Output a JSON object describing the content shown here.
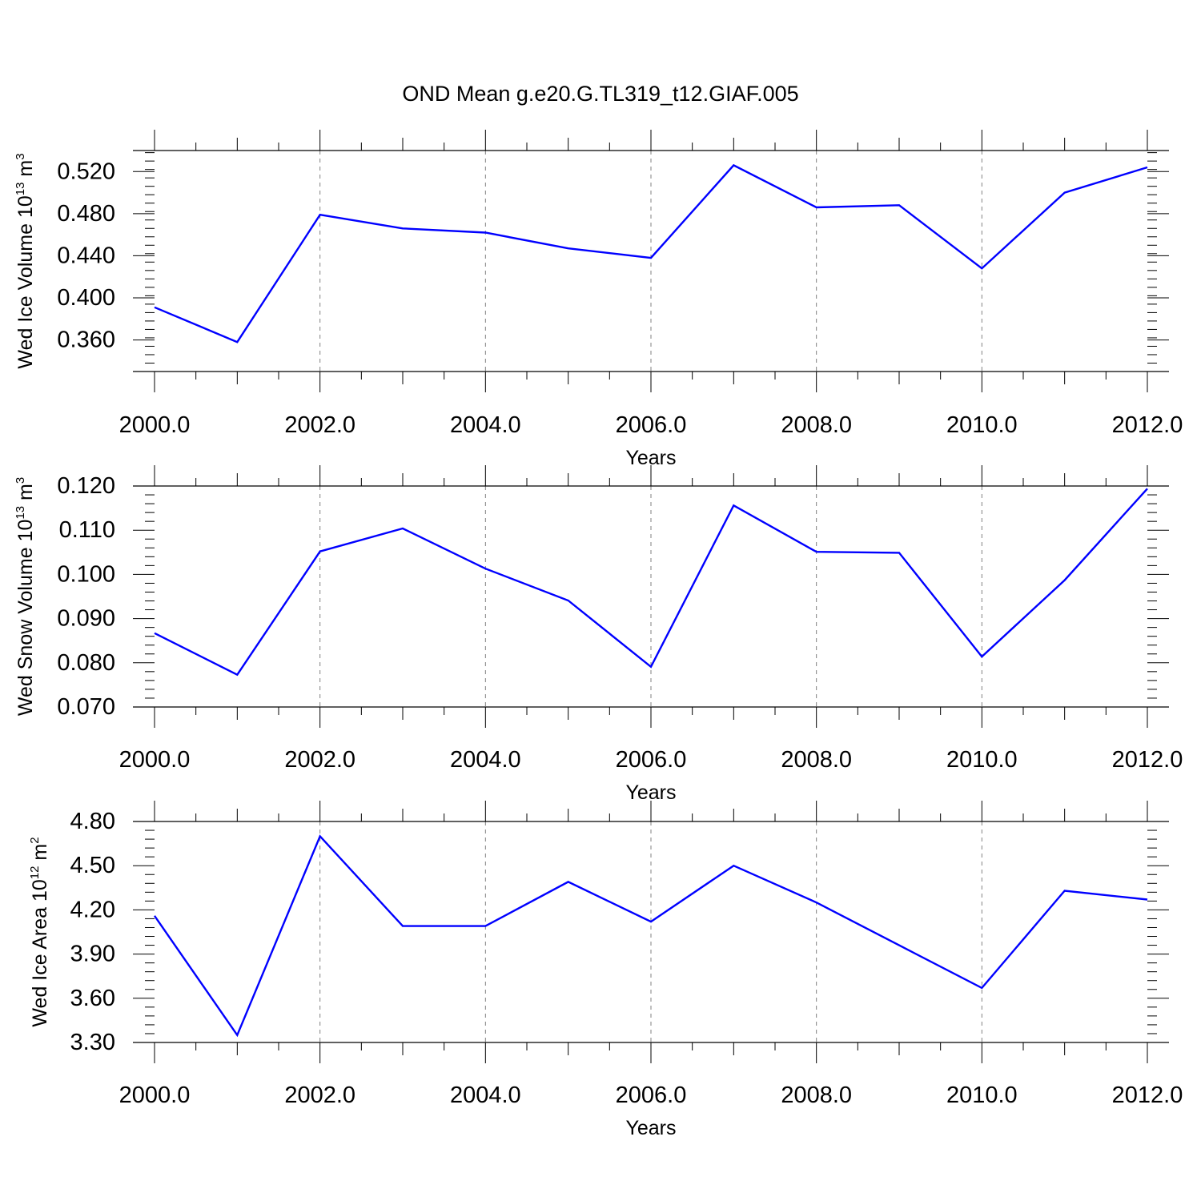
{
  "title": "OND Mean g.e20.G.TL319_t12.GIAF.005",
  "colors": {
    "line": "#0000ff",
    "axis": "#000000",
    "grid": "#808080",
    "background": "#ffffff"
  },
  "chart_data": [
    {
      "type": "line",
      "ylabel": {
        "pre": "Wed Ice Volume 10",
        "sup1": "13",
        "mid": " m",
        "sup2": "3"
      },
      "xlabel": "Years",
      "xlim": [
        2000,
        2012
      ],
      "ylim": [
        0.33,
        0.54
      ],
      "xticks": [
        2000,
        2002,
        2004,
        2006,
        2008,
        2010,
        2012
      ],
      "xtick_labels": [
        "2000.0",
        "2002.0",
        "2004.0",
        "2006.0",
        "2008.0",
        "2010.0",
        "2012.0"
      ],
      "yticks": [
        0.36,
        0.4,
        0.44,
        0.48,
        0.52
      ],
      "ytick_labels": [
        "0.360",
        "0.400",
        "0.440",
        "0.480",
        "0.520"
      ],
      "grid": "vertical dashed at major x ticks",
      "series": [
        {
          "x": [
            2000,
            2001,
            2002,
            2003,
            2004,
            2005,
            2006,
            2007,
            2008,
            2009,
            2010,
            2011,
            2012
          ],
          "values": [
            0.391,
            0.358,
            0.479,
            0.466,
            0.462,
            0.447,
            0.438,
            0.526,
            0.486,
            0.488,
            0.428,
            0.5,
            0.524
          ]
        }
      ]
    },
    {
      "type": "line",
      "ylabel": {
        "pre": "Wed Snow Volume 10",
        "sup1": "13",
        "mid": " m",
        "sup2": "3"
      },
      "xlabel": "Years",
      "xlim": [
        2000,
        2012
      ],
      "ylim": [
        0.07,
        0.12
      ],
      "xticks": [
        2000,
        2002,
        2004,
        2006,
        2008,
        2010,
        2012
      ],
      "xtick_labels": [
        "2000.0",
        "2002.0",
        "2004.0",
        "2006.0",
        "2008.0",
        "2010.0",
        "2012.0"
      ],
      "yticks": [
        0.07,
        0.08,
        0.09,
        0.1,
        0.11,
        0.12
      ],
      "ytick_labels": [
        "0.070",
        "0.080",
        "0.090",
        "0.100",
        "0.110",
        "0.120"
      ],
      "grid": "vertical dashed at major x ticks",
      "series": [
        {
          "x": [
            2000,
            2001,
            2002,
            2003,
            2004,
            2005,
            2006,
            2007,
            2008,
            2009,
            2010,
            2011,
            2012
          ],
          "values": [
            0.0867,
            0.0773,
            0.1052,
            0.1104,
            0.1013,
            0.0941,
            0.0791,
            0.1156,
            0.1051,
            0.1049,
            0.0814,
            0.0987,
            0.1194
          ]
        }
      ]
    },
    {
      "type": "line",
      "ylabel": {
        "pre": "Wed Ice Area 10",
        "sup1": "12",
        "mid": " m",
        "sup2": "2"
      },
      "xlabel": "Years",
      "xlim": [
        2000,
        2012
      ],
      "ylim": [
        3.3,
        4.8
      ],
      "xticks": [
        2000,
        2002,
        2004,
        2006,
        2008,
        2010,
        2012
      ],
      "xtick_labels": [
        "2000.0",
        "2002.0",
        "2004.0",
        "2006.0",
        "2008.0",
        "2010.0",
        "2012.0"
      ],
      "yticks": [
        3.3,
        3.6,
        3.9,
        4.2,
        4.5,
        4.8
      ],
      "ytick_labels": [
        "3.30",
        "3.60",
        "3.90",
        "4.20",
        "4.50",
        "4.80"
      ],
      "grid": "vertical dashed at major x ticks",
      "series": [
        {
          "x": [
            2000,
            2001,
            2002,
            2003,
            2004,
            2005,
            2006,
            2007,
            2008,
            2009,
            2010,
            2011,
            2012
          ],
          "values": [
            4.16,
            3.35,
            4.7,
            4.09,
            4.09,
            4.39,
            4.12,
            4.5,
            4.25,
            3.96,
            3.67,
            4.33,
            4.27
          ]
        }
      ]
    }
  ]
}
